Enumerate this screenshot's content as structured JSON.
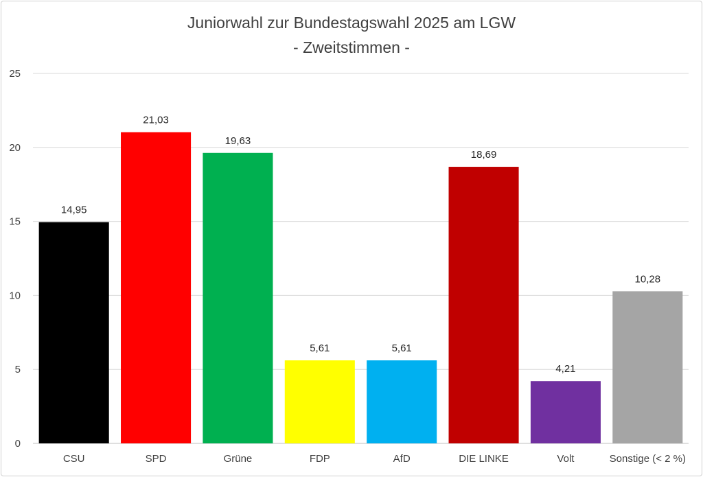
{
  "chart_data": {
    "type": "bar",
    "title": "Juniorwahl zur Bundestagswahl 2025 am LGW",
    "subtitle": "- Zweitstimmen -",
    "categories": [
      "CSU",
      "SPD",
      "Grüne",
      "FDP",
      "AfD",
      "DIE LINKE",
      "Volt",
      "Sonstige (< 2 %)"
    ],
    "values": [
      14.95,
      21.03,
      19.63,
      5.61,
      5.61,
      18.69,
      4.21,
      10.28
    ],
    "value_labels": [
      "14,95",
      "21,03",
      "19,63",
      "5,61",
      "5,61",
      "18,69",
      "4,21",
      "10,28"
    ],
    "colors": [
      "#000000",
      "#ff0000",
      "#00b050",
      "#ffff00",
      "#00b0f0",
      "#c00000",
      "#7030a0",
      "#a5a5a5"
    ],
    "ylim": [
      0,
      25
    ],
    "yticks": [
      0,
      5,
      10,
      15,
      20,
      25
    ],
    "xlabel": "",
    "ylabel": "",
    "grid": true,
    "legend": "none"
  }
}
